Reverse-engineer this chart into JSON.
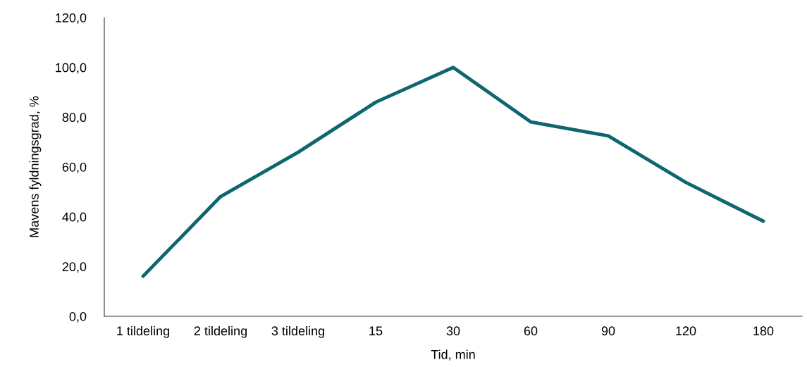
{
  "chart_data": {
    "type": "line",
    "xlabel": "Tid, min",
    "ylabel": "Mavens fyldningsgrad, %",
    "categories": [
      "1 tildeling",
      "2 tildeling",
      "3 tildeling",
      "15",
      "30",
      "60",
      "90",
      "120",
      "180"
    ],
    "series": [
      {
        "color": "#0e6670",
        "values": [
          16.1,
          48.1,
          65.9,
          86.0,
          100.0,
          78.1,
          72.5,
          53.8,
          38.2
        ]
      }
    ],
    "ylim": [
      0,
      120
    ],
    "yticks": [
      {
        "value": 0,
        "label": "0,0"
      },
      {
        "value": 20,
        "label": "20,0"
      },
      {
        "value": 40,
        "label": "40,0"
      },
      {
        "value": 60,
        "label": "60,0"
      },
      {
        "value": 80,
        "label": "80,0"
      },
      {
        "value": 100,
        "label": "100,0"
      },
      {
        "value": 120,
        "label": "120,0"
      }
    ],
    "grid": false,
    "legend": false,
    "marker": "none",
    "line_style": "solid"
  }
}
